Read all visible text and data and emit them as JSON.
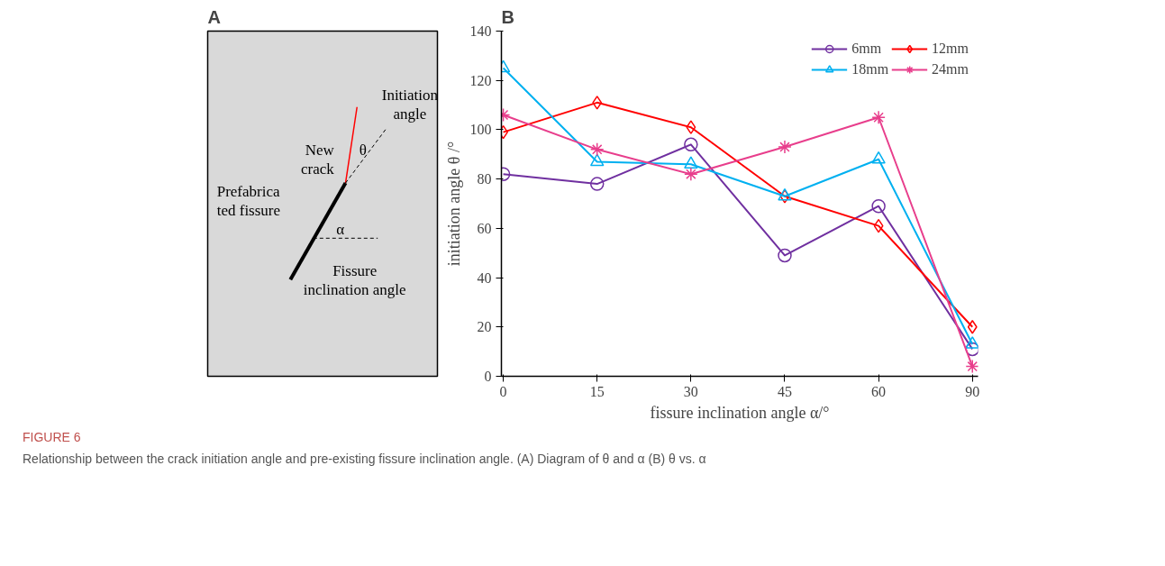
{
  "chart_data": [
    {
      "type": "other",
      "title": "A",
      "annotations": [
        "Initiation\nangle",
        "New\ncrack",
        "θ",
        "Prefabrica\nted fissure",
        "α",
        "Fissure\ninclination angle"
      ]
    },
    {
      "type": "line",
      "title": "B",
      "xlabel": "fissure inclination angle α/°",
      "ylabel": "initiation angle θ /°",
      "categories": [
        "0",
        "15",
        "30",
        "45",
        "60",
        "90"
      ],
      "ylim": [
        0,
        140
      ],
      "yticks": [
        0,
        20,
        40,
        60,
        80,
        100,
        120,
        140
      ],
      "grid": false,
      "legend": "top right",
      "line_style": "solid",
      "series": [
        {
          "name": "6mm",
          "color": "#7030a0",
          "marker": "circle",
          "values": [
            82,
            78,
            94,
            49,
            69,
            11
          ]
        },
        {
          "name": "12mm",
          "color": "#ff0000",
          "marker": "diamond",
          "values": [
            99,
            111,
            101,
            73,
            61,
            20
          ]
        },
        {
          "name": "18mm",
          "color": "#00b0f0",
          "marker": "triangle",
          "values": [
            125,
            87,
            86,
            73,
            88,
            13
          ]
        },
        {
          "name": "24mm",
          "color": "#e83e8c",
          "marker": "cross",
          "values": [
            106,
            92,
            82,
            93,
            105,
            4
          ]
        }
      ],
      "annotations": [
        "FIGURE 6",
        "Relationship between the crack initiation angle and pre-existing fissure inclination angle. (A) Diagram of θ and α (B) θ vs. α"
      ]
    }
  ]
}
